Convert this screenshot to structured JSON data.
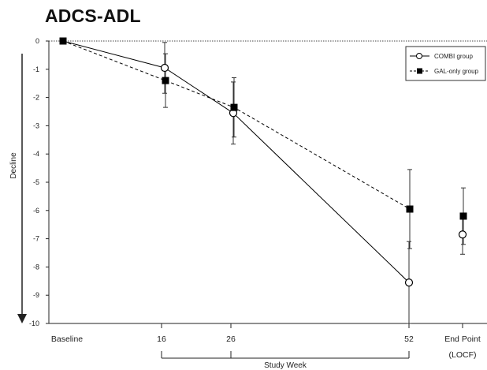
{
  "chart_data": {
    "type": "line",
    "title": "ADCS-ADL",
    "ylabel": "Decline",
    "xlabel": "Study Week",
    "ylim": [
      -10,
      0
    ],
    "yticks": [
      0,
      -1,
      -2,
      -3,
      -4,
      -5,
      -6,
      -7,
      -8,
      -9,
      -10
    ],
    "categories": [
      "Baseline",
      "16",
      "26",
      "52",
      "End Point"
    ],
    "category_sublabels": [
      "",
      "",
      "",
      "",
      "(LOCF)"
    ],
    "series": [
      {
        "name": "COMBI group",
        "marker": "open-circle",
        "line_style": "solid",
        "color": "#000000",
        "values": [
          0,
          -0.95,
          -2.55,
          -8.55,
          -6.85
        ],
        "error": [
          0,
          0.9,
          1.1,
          1.45,
          0.7
        ]
      },
      {
        "name": "GAL-only group",
        "marker": "filled-square",
        "line_style": "dashed",
        "color": "#000000",
        "values": [
          0,
          -1.4,
          -2.35,
          -5.95,
          -6.2
        ],
        "error": [
          0,
          0.95,
          1.05,
          1.4,
          1.0
        ]
      }
    ],
    "connected_points": 4,
    "legend_position": "top-right",
    "grid": false
  }
}
